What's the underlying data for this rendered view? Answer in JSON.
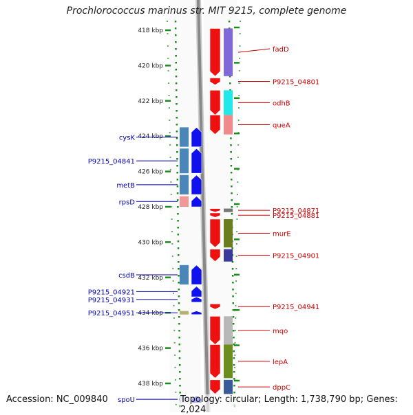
{
  "title": "Prochlorococcus marinus str. MIT 9215, complete genome",
  "footer": {
    "accession": "Accession: NC_009840",
    "topology": "Topology: circular; Length: 1,738,790 bp; Genes: 2,024"
  },
  "colors": {
    "forward_arrow": "#ee1111",
    "reverse_arrow": "#1111ee",
    "backbone": "#888888",
    "tick": "#1a8a1a",
    "forward_label": "#cc0000",
    "reverse_label": "#0000aa"
  },
  "ruler": {
    "ticks": [
      {
        "label": "418 kbp",
        "kbp": 418
      },
      {
        "label": "420 kbp",
        "kbp": 420
      },
      {
        "label": "422 kbp",
        "kbp": 422
      },
      {
        "label": "424 kbp",
        "kbp": 424
      },
      {
        "label": "426 kbp",
        "kbp": 426
      },
      {
        "label": "428 kbp",
        "kbp": 428
      },
      {
        "label": "430 kbp",
        "kbp": 430
      },
      {
        "label": "432 kbp",
        "kbp": 432
      },
      {
        "label": "434 kbp",
        "kbp": 434
      },
      {
        "label": "436 kbp",
        "kbp": 436
      },
      {
        "label": "438 kbp",
        "kbp": 438
      }
    ]
  },
  "forward_genes": [
    {
      "name": "fadD",
      "start_kbp": 417.9,
      "end_kbp": 420.6,
      "cog_color": "#8068d8"
    },
    {
      "name": "P9215_04801",
      "start_kbp": 420.7,
      "end_kbp": 421.1
    },
    {
      "name": "odhB",
      "start_kbp": 421.4,
      "end_kbp": 422.8,
      "cog_color": "#22e8e8"
    },
    {
      "name": "queA",
      "start_kbp": 422.8,
      "end_kbp": 423.9,
      "cog_color": "#f08a8a"
    },
    {
      "name": "P9215_04871",
      "start_kbp": 428.1,
      "end_kbp": 428.3,
      "cog_color": "#777777"
    },
    {
      "name": "P9215_04881",
      "start_kbp": 428.35,
      "end_kbp": 428.6
    },
    {
      "name": "murE",
      "start_kbp": 428.7,
      "end_kbp": 430.3,
      "cog_color": "#6b7d1e"
    },
    {
      "name": "P9215_04901",
      "start_kbp": 430.4,
      "end_kbp": 431.1,
      "cog_color": "#3a3a9a"
    },
    {
      "name": "P9215_04941",
      "start_kbp": 433.5,
      "end_kbp": 433.8
    },
    {
      "name": "mqo",
      "start_kbp": 434.2,
      "end_kbp": 435.8,
      "cog_color": "#b8b8b8"
    },
    {
      "name": "lepA",
      "start_kbp": 435.8,
      "end_kbp": 437.7,
      "cog_color": "#6b8e1e"
    },
    {
      "name": "dppC",
      "start_kbp": 437.8,
      "end_kbp": 438.6,
      "cog_color": "#3a5a9a"
    }
  ],
  "reverse_genes": [
    {
      "name": "cysK",
      "start_kbp": 423.5,
      "end_kbp": 424.6,
      "cog_color": "#4a86b8"
    },
    {
      "name": "P9215_04841",
      "start_kbp": 424.7,
      "end_kbp": 426.1,
      "cog_color": "#4a86b8"
    },
    {
      "name": "metB",
      "start_kbp": 426.2,
      "end_kbp": 427.3,
      "cog_color": "#4a86b8"
    },
    {
      "name": "rpsD",
      "start_kbp": 427.4,
      "end_kbp": 428.0,
      "cog_color": "#f09898"
    },
    {
      "name": "csdB",
      "start_kbp": 431.3,
      "end_kbp": 432.4,
      "cog_color": "#4a86b8"
    },
    {
      "name": "P9215_04921",
      "start_kbp": 432.5,
      "end_kbp": 433.1
    },
    {
      "name": "P9215_04931",
      "start_kbp": 433.1,
      "end_kbp": 433.4
    },
    {
      "name": "P9215_04951",
      "start_kbp": 433.9,
      "end_kbp": 434.1,
      "cog_color": "#b8b070"
    },
    {
      "name": "spoU",
      "start_kbp": 438.7,
      "end_kbp": 439.1,
      "cog_color": "#c8c8e8"
    }
  ]
}
